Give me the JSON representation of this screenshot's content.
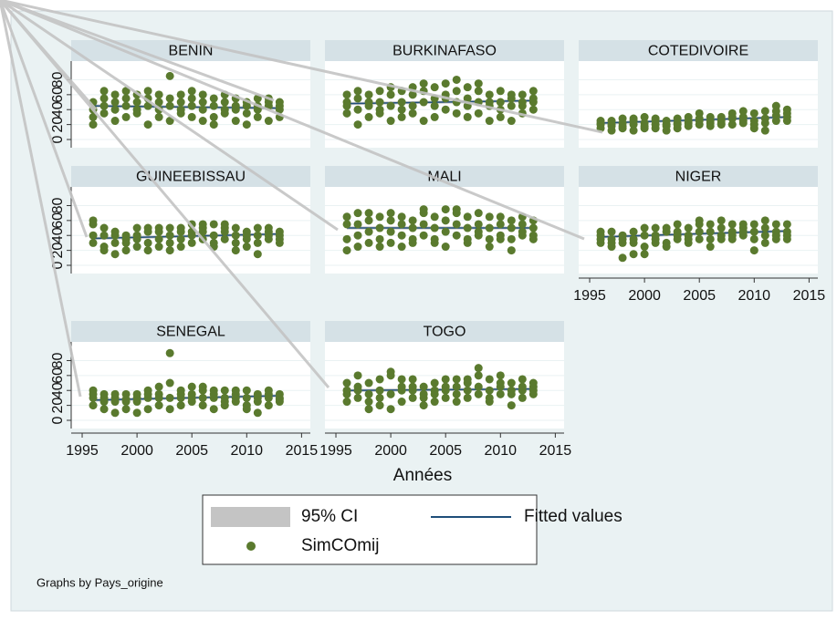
{
  "chart_data": {
    "type": "scatter",
    "x": [
      1996,
      1997,
      1998,
      1999,
      2000,
      2001,
      2002,
      2003,
      2004,
      2005,
      2006,
      2007,
      2008,
      2009,
      2010,
      2011,
      2012,
      2013
    ],
    "xlim": [
      1994,
      2015.8
    ],
    "xticks": [
      1995,
      2000,
      2005,
      2010,
      2015
    ],
    "ylim": [
      -11,
      105
    ],
    "yticks": [
      0,
      20,
      40,
      60,
      80
    ],
    "x_label": "Années",
    "note": "Graphs by Pays_origine",
    "legend": {
      "ci": "95% CI",
      "fit": "Fitted values",
      "points": "SimCOmij"
    },
    "colors": {
      "points": "#5a7a2e",
      "fit": "#1f4e79",
      "ci": "#c4c4c4",
      "header": "#d5e1e6"
    },
    "panels": [
      {
        "title": "BENIN",
        "fit": [
          45,
          42
        ],
        "values": [
          [
            30,
            40,
            50,
            20
          ],
          [
            35,
            55,
            65,
            45
          ],
          [
            25,
            40,
            50,
            60
          ],
          [
            30,
            45,
            55,
            65
          ],
          [
            35,
            50,
            60,
            40
          ],
          [
            20,
            45,
            55,
            65
          ],
          [
            30,
            40,
            50,
            60
          ],
          [
            25,
            45,
            55,
            85
          ],
          [
            35,
            50,
            60,
            40
          ],
          [
            30,
            45,
            55,
            65
          ],
          [
            25,
            40,
            60,
            50
          ],
          [
            30,
            45,
            55,
            20
          ],
          [
            35,
            50,
            60,
            40
          ],
          [
            25,
            40,
            55,
            45
          ],
          [
            20,
            35,
            50,
            45
          ],
          [
            30,
            40,
            55,
            45
          ],
          [
            25,
            45,
            55,
            50
          ],
          [
            30,
            40,
            50,
            45
          ]
        ]
      },
      {
        "title": "BURKINAFASO",
        "fit": [
          48,
          52
        ],
        "values": [
          [
            35,
            50,
            60,
            45
          ],
          [
            20,
            40,
            55,
            65
          ],
          [
            30,
            45,
            60,
            50
          ],
          [
            35,
            50,
            65,
            40
          ],
          [
            25,
            45,
            60,
            70
          ],
          [
            30,
            50,
            65,
            40
          ],
          [
            35,
            45,
            60,
            70
          ],
          [
            25,
            50,
            65,
            75
          ],
          [
            30,
            55,
            70,
            45
          ],
          [
            40,
            55,
            75,
            60
          ],
          [
            35,
            50,
            65,
            80
          ],
          [
            30,
            55,
            70,
            45
          ],
          [
            35,
            50,
            65,
            75
          ],
          [
            25,
            45,
            60,
            50
          ],
          [
            30,
            50,
            65,
            40
          ],
          [
            25,
            45,
            55,
            60
          ],
          [
            35,
            50,
            60,
            45
          ],
          [
            40,
            55,
            65,
            50
          ]
        ]
      },
      {
        "title": "COTEDIVOIRE",
        "fit": [
          22,
          30
        ],
        "values": [
          [
            15,
            20,
            25,
            22
          ],
          [
            12,
            18,
            25,
            20
          ],
          [
            15,
            22,
            28,
            18
          ],
          [
            12,
            20,
            28,
            25
          ],
          [
            15,
            22,
            30,
            18
          ],
          [
            15,
            20,
            28,
            25
          ],
          [
            12,
            20,
            25,
            18
          ],
          [
            15,
            22,
            28,
            20
          ],
          [
            18,
            25,
            30,
            22
          ],
          [
            20,
            25,
            35,
            28
          ],
          [
            18,
            22,
            30,
            25
          ],
          [
            20,
            25,
            30,
            22
          ],
          [
            20,
            28,
            35,
            30
          ],
          [
            22,
            30,
            38,
            25
          ],
          [
            15,
            25,
            35,
            20
          ],
          [
            12,
            28,
            38,
            22
          ],
          [
            25,
            32,
            45,
            38
          ],
          [
            25,
            30,
            40,
            35
          ]
        ]
      },
      {
        "title": "GUINEEBISSAU",
        "fit": [
          36,
          42
        ],
        "values": [
          [
            30,
            40,
            55,
            60
          ],
          [
            25,
            40,
            50,
            20
          ],
          [
            15,
            30,
            40,
            45
          ],
          [
            20,
            35,
            40,
            30
          ],
          [
            25,
            40,
            50,
            35
          ],
          [
            30,
            45,
            50,
            20
          ],
          [
            25,
            35,
            45,
            50
          ],
          [
            30,
            40,
            50,
            20
          ],
          [
            25,
            35,
            45,
            50
          ],
          [
            30,
            45,
            55,
            40
          ],
          [
            35,
            45,
            55,
            50
          ],
          [
            30,
            40,
            55,
            25
          ],
          [
            35,
            45,
            50,
            55
          ],
          [
            30,
            40,
            50,
            20
          ],
          [
            25,
            35,
            45,
            40
          ],
          [
            30,
            40,
            50,
            15
          ],
          [
            35,
            45,
            50,
            40
          ],
          [
            30,
            35,
            45,
            40
          ]
        ]
      },
      {
        "title": "MALI",
        "fit": [
          50,
          50
        ],
        "values": [
          [
            35,
            55,
            65,
            20
          ],
          [
            40,
            55,
            70,
            25
          ],
          [
            30,
            45,
            60,
            70
          ],
          [
            35,
            50,
            65,
            25
          ],
          [
            30,
            45,
            60,
            70
          ],
          [
            40,
            55,
            65,
            25
          ],
          [
            35,
            50,
            60,
            30
          ],
          [
            40,
            55,
            70,
            75
          ],
          [
            35,
            50,
            65,
            30
          ],
          [
            45,
            60,
            75,
            25
          ],
          [
            40,
            55,
            70,
            75
          ],
          [
            35,
            50,
            65,
            30
          ],
          [
            40,
            55,
            70,
            45
          ],
          [
            35,
            50,
            65,
            25
          ],
          [
            40,
            55,
            65,
            35
          ],
          [
            35,
            50,
            60,
            20
          ],
          [
            40,
            55,
            65,
            45
          ],
          [
            35,
            50,
            60,
            40
          ]
        ]
      },
      {
        "title": "NIGER",
        "fit": [
          38,
          46
        ],
        "values": [
          [
            30,
            40,
            45,
            35
          ],
          [
            25,
            35,
            45,
            30
          ],
          [
            10,
            30,
            40,
            35
          ],
          [
            15,
            35,
            45,
            30
          ],
          [
            25,
            40,
            50,
            15
          ],
          [
            30,
            40,
            50,
            35
          ],
          [
            30,
            45,
            50,
            25
          ],
          [
            35,
            45,
            55,
            40
          ],
          [
            30,
            40,
            50,
            35
          ],
          [
            35,
            45,
            55,
            60
          ],
          [
            35,
            45,
            55,
            25
          ],
          [
            40,
            50,
            60,
            35
          ],
          [
            35,
            45,
            55,
            40
          ],
          [
            40,
            50,
            55,
            45
          ],
          [
            35,
            45,
            55,
            20
          ],
          [
            40,
            50,
            60,
            30
          ],
          [
            35,
            45,
            55,
            40
          ],
          [
            40,
            45,
            55,
            35
          ]
        ]
      },
      {
        "title": "SENEGAL",
        "fit": [
          27,
          33
        ],
        "values": [
          [
            20,
            30,
            40,
            35
          ],
          [
            15,
            25,
            35,
            30
          ],
          [
            10,
            25,
            30,
            35
          ],
          [
            15,
            25,
            35,
            28
          ],
          [
            10,
            25,
            30,
            35
          ],
          [
            15,
            30,
            40,
            35
          ],
          [
            20,
            35,
            45,
            30
          ],
          [
            15,
            30,
            50,
            90
          ],
          [
            20,
            30,
            40,
            35
          ],
          [
            25,
            35,
            45,
            30
          ],
          [
            20,
            30,
            40,
            45
          ],
          [
            15,
            30,
            40,
            35
          ],
          [
            20,
            30,
            40,
            25
          ],
          [
            25,
            35,
            40,
            30
          ],
          [
            20,
            30,
            40,
            15
          ],
          [
            10,
            25,
            35,
            30
          ],
          [
            20,
            30,
            40,
            35
          ],
          [
            25,
            30,
            35,
            28
          ]
        ]
      },
      {
        "title": "TOGO",
        "fit": [
          40,
          42
        ],
        "values": [
          [
            25,
            40,
            50,
            35
          ],
          [
            30,
            45,
            60,
            40
          ],
          [
            15,
            35,
            50,
            25
          ],
          [
            20,
            40,
            55,
            30
          ],
          [
            15,
            35,
            60,
            65
          ],
          [
            25,
            40,
            55,
            45
          ],
          [
            30,
            45,
            55,
            40
          ],
          [
            20,
            30,
            45,
            35
          ],
          [
            25,
            40,
            50,
            35
          ],
          [
            30,
            45,
            55,
            40
          ],
          [
            35,
            45,
            55,
            25
          ],
          [
            30,
            40,
            55,
            50
          ],
          [
            35,
            45,
            60,
            70
          ],
          [
            25,
            40,
            55,
            30
          ],
          [
            35,
            45,
            60,
            50
          ],
          [
            20,
            35,
            50,
            40
          ],
          [
            30,
            45,
            55,
            40
          ],
          [
            35,
            40,
            50,
            45
          ]
        ]
      }
    ]
  }
}
